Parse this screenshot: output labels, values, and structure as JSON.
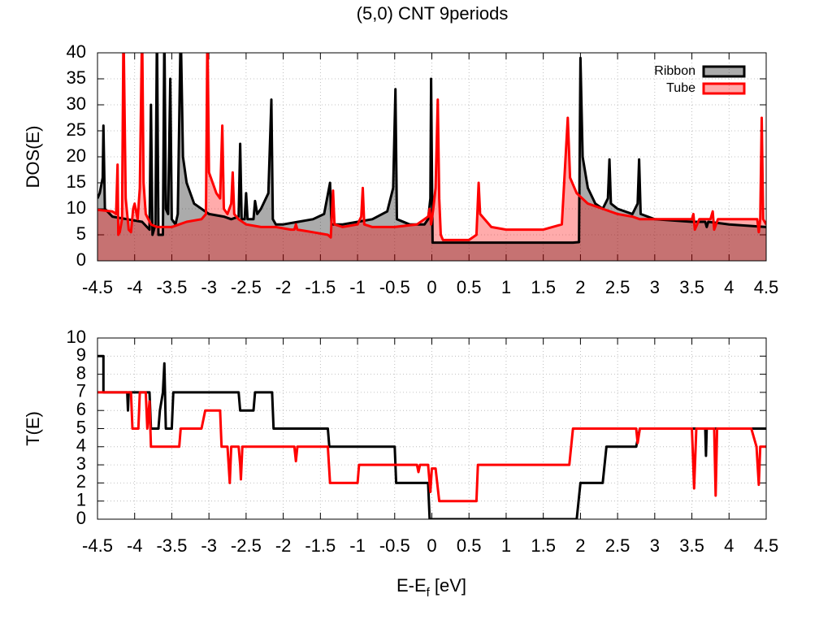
{
  "title": "(5,0) CNT 9periods",
  "chart_data": [
    {
      "type": "area",
      "ylabel": "DOS(E)",
      "xlim": [
        -4.5,
        4.5
      ],
      "ylim": [
        0,
        40
      ],
      "xticks": [
        -4.5,
        -4,
        -3.5,
        -3,
        -2.5,
        -2,
        -1.5,
        -1,
        -0.5,
        0,
        0.5,
        1,
        1.5,
        2,
        2.5,
        3,
        3.5,
        4,
        4.5
      ],
      "yticks": [
        0,
        5,
        10,
        15,
        20,
        25,
        30,
        35,
        40
      ],
      "grid": true,
      "legend": "top right",
      "series": [
        {
          "name": "Ribbon",
          "color": "#000000",
          "fill": "#000000",
          "fill_opacity": 0.33,
          "x": [
            -4.5,
            -4.47,
            -4.43,
            -4.42,
            -4.4,
            -4.3,
            -4.1,
            -3.9,
            -3.8,
            -3.78,
            -3.76,
            -3.72,
            -3.7,
            -3.68,
            -3.62,
            -3.6,
            -3.58,
            -3.55,
            -3.52,
            -3.5,
            -3.45,
            -3.42,
            -3.38,
            -3.35,
            -3.3,
            -3.2,
            -3.0,
            -2.8,
            -2.7,
            -2.6,
            -2.58,
            -2.56,
            -2.52,
            -2.5,
            -2.48,
            -2.4,
            -2.38,
            -2.35,
            -2.3,
            -2.2,
            -2.16,
            -2.14,
            -2.1,
            -2.0,
            -1.8,
            -1.6,
            -1.45,
            -1.37,
            -1.35,
            -1.2,
            -1.0,
            -0.8,
            -0.6,
            -0.52,
            -0.49,
            -0.47,
            -0.3,
            -0.1,
            -0.05,
            -0.02,
            -0.01,
            0.01,
            0.2,
            0.6,
            1.0,
            1.5,
            1.9,
            1.98,
            2.0,
            2.03,
            2.1,
            2.2,
            2.3,
            2.37,
            2.39,
            2.41,
            2.5,
            2.7,
            2.77,
            2.79,
            2.81,
            3.0,
            3.5,
            3.68,
            3.7,
            3.72,
            4.0,
            4.5
          ],
          "values": [
            12,
            13,
            16,
            26,
            10,
            8.5,
            8,
            7.5,
            6,
            30,
            5,
            7,
            45,
            5,
            5,
            45,
            10,
            9,
            35,
            8,
            7,
            9,
            45,
            20,
            15,
            11,
            9,
            8.5,
            8,
            8.5,
            22.5,
            8,
            8,
            13,
            8,
            8,
            11.5,
            9,
            10,
            13,
            31,
            8,
            7,
            7,
            7.5,
            8,
            9,
            15,
            7,
            7,
            7.5,
            8,
            9.5,
            14,
            33,
            8,
            7,
            7,
            8,
            12,
            35,
            3.5,
            3.5,
            3.5,
            3.5,
            3.5,
            3.5,
            3.6,
            39,
            20,
            14,
            11,
            10,
            12,
            19.5,
            11,
            10,
            9,
            11,
            19.5,
            9,
            8,
            7.5,
            7.5,
            6.5,
            7.5,
            7,
            6.5
          ]
        },
        {
          "name": "Tube",
          "color": "#ff0000",
          "fill": "#ff0000",
          "fill_opacity": 0.33,
          "x": [
            -4.5,
            -4.3,
            -4.25,
            -4.23,
            -4.22,
            -4.2,
            -4.17,
            -4.15,
            -4.12,
            -4.08,
            -4.05,
            -4.02,
            -4.0,
            -3.96,
            -3.93,
            -3.9,
            -3.88,
            -3.85,
            -3.78,
            -3.7,
            -3.6,
            -3.5,
            -3.4,
            -3.3,
            -3.1,
            -3.04,
            -3.02,
            -3.0,
            -2.9,
            -2.85,
            -2.82,
            -2.8,
            -2.75,
            -2.7,
            -2.68,
            -2.66,
            -2.6,
            -2.5,
            -2.3,
            -2.1,
            -1.9,
            -1.85,
            -1.83,
            -1.81,
            -1.6,
            -1.4,
            -1.36,
            -1.33,
            -1.31,
            -1.2,
            -1.0,
            -0.95,
            -0.93,
            -0.91,
            -0.8,
            -0.5,
            -0.2,
            -0.05,
            -0.03,
            -0.01,
            0.02,
            0.05,
            0.08,
            0.1,
            0.12,
            0.15,
            0.5,
            0.6,
            0.63,
            0.65,
            0.8,
            1.0,
            1.5,
            1.75,
            1.83,
            1.86,
            1.95,
            2.1,
            2.3,
            2.5,
            2.7,
            2.8,
            3.0,
            3.5,
            3.52,
            3.54,
            3.6,
            3.75,
            3.78,
            3.8,
            3.85,
            4.2,
            4.38,
            4.4,
            4.42,
            4.44,
            4.46,
            4.5
          ],
          "values": [
            9.8,
            9.5,
            9,
            18.5,
            5,
            5.5,
            8,
            45,
            12,
            6,
            5.5,
            10,
            11,
            8,
            14,
            45,
            15,
            9,
            7,
            6.5,
            6.5,
            6.5,
            7,
            7.5,
            8,
            9,
            45,
            17,
            13,
            12,
            26,
            10,
            9,
            11,
            17,
            9,
            8,
            7,
            6.5,
            6.5,
            6,
            6,
            7,
            6,
            5.5,
            5,
            4.5,
            13.5,
            7,
            6.5,
            7,
            8.5,
            14,
            7,
            6.5,
            6.5,
            7,
            8.5,
            10,
            7,
            10,
            14,
            31,
            12,
            5,
            4,
            4,
            5,
            15,
            9,
            6.5,
            6,
            6,
            7,
            27.5,
            16,
            13,
            11,
            10,
            9,
            8.5,
            8,
            8,
            8,
            9,
            6,
            8,
            8,
            9.5,
            6,
            8,
            8,
            8,
            5.5,
            8,
            27.5,
            8,
            7
          ]
        }
      ]
    },
    {
      "type": "line",
      "ylabel": "T(E)",
      "xlabel": [
        "E-E",
        "f",
        " [eV]"
      ],
      "xlim": [
        -4.5,
        4.5
      ],
      "ylim": [
        0,
        10
      ],
      "xticks": [
        -4.5,
        -4,
        -3.5,
        -3,
        -2.5,
        -2,
        -1.5,
        -1,
        -0.5,
        0,
        0.5,
        1,
        1.5,
        2,
        2.5,
        3,
        3.5,
        4,
        4.5
      ],
      "yticks": [
        0,
        1,
        2,
        3,
        4,
        5,
        6,
        7,
        8,
        9,
        10
      ],
      "grid": true,
      "series": [
        {
          "name": "Ribbon",
          "color": "#000000",
          "x": [
            -4.5,
            -4.42,
            -4.42,
            -4.1,
            -4.09,
            -4.08,
            -3.8,
            -3.78,
            -3.68,
            -3.66,
            -3.62,
            -3.6,
            -3.58,
            -3.5,
            -3.48,
            -2.6,
            -2.58,
            -2.4,
            -2.38,
            -2.15,
            -2.13,
            -1.4,
            -1.38,
            -0.5,
            -0.48,
            -0.05,
            -0.03,
            1.95,
            2.0,
            2.3,
            2.35,
            2.75,
            2.8,
            3.68,
            3.69,
            3.7,
            4.5
          ],
          "values": [
            9,
            9,
            7,
            7,
            6,
            7,
            7,
            5,
            5,
            6,
            7,
            8.6,
            5,
            5,
            7,
            7,
            6,
            6,
            7,
            7,
            5,
            5,
            4,
            4,
            2,
            2,
            0,
            0,
            2,
            2,
            4,
            4,
            5,
            5,
            3.5,
            5,
            5
          ]
        },
        {
          "name": "Tube",
          "color": "#ff0000",
          "x": [
            -4.5,
            -4.05,
            -4.03,
            -3.95,
            -3.93,
            -3.85,
            -3.83,
            -3.8,
            -3.78,
            -3.4,
            -3.38,
            -3.1,
            -3.05,
            -2.85,
            -2.83,
            -2.75,
            -2.72,
            -2.7,
            -2.6,
            -2.58,
            -2.57,
            -2.55,
            -1.85,
            -1.83,
            -1.81,
            -1.4,
            -1.37,
            -1.0,
            -0.98,
            -0.2,
            -0.18,
            -0.16,
            -0.05,
            -0.02,
            0.0,
            0.05,
            0.1,
            0.6,
            0.62,
            1.85,
            1.9,
            2.75,
            2.77,
            2.8,
            3.5,
            3.53,
            3.56,
            3.8,
            3.82,
            3.84,
            4.3,
            4.37,
            4.4,
            4.42,
            4.5
          ],
          "values": [
            7,
            7,
            5,
            5,
            7,
            7,
            5,
            6.5,
            4,
            4,
            5,
            5,
            6,
            6,
            4,
            4,
            2,
            4,
            4,
            3,
            2.2,
            4,
            4,
            3.2,
            4,
            4,
            2,
            2,
            3,
            3,
            2.6,
            3,
            3,
            1.5,
            2.8,
            2.8,
            1,
            1,
            3,
            3,
            5,
            5,
            4.2,
            5,
            5,
            1.7,
            5,
            5,
            1.3,
            5,
            5,
            4,
            1.9,
            4,
            4
          ]
        }
      ]
    }
  ]
}
